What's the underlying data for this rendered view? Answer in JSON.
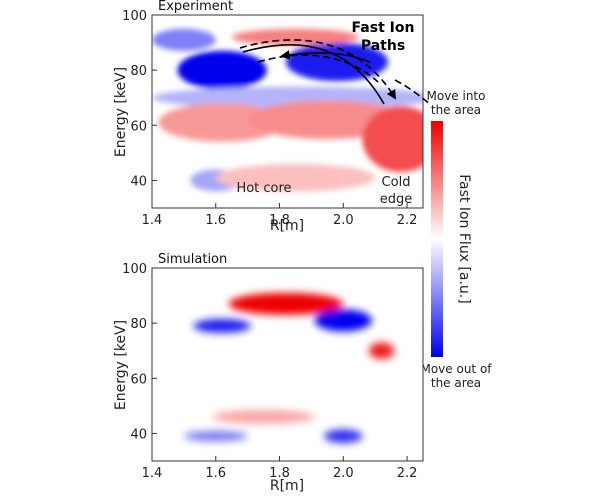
{
  "chart_data": [
    {
      "type": "heatmap",
      "title": "Experiment",
      "xlabel": "R[m]",
      "ylabel": "Energy [keV]",
      "xlim": [
        1.4,
        2.25
      ],
      "ylim": [
        30,
        100
      ],
      "xticks": [
        "1.4",
        "1.6",
        "1.8",
        "2.0",
        "2.2"
      ],
      "yticks": [
        "40",
        "60",
        "80",
        "100"
      ],
      "annotations": {
        "paths_line1": "Fast Ion",
        "paths_line2": "Paths",
        "hot_core": "Hot core",
        "cold_edge_line1": "Cold",
        "cold_edge_line2": "edge"
      },
      "colorbar": {
        "label": "Fast Ion Flux [a.u.]",
        "top_label_line1": "Move into",
        "top_label_line2": "the area",
        "bottom_label_line1": "Move out of",
        "bottom_label_line2": "the area",
        "colors": [
          "#0000ee",
          "#ffffff",
          "#ee0000"
        ]
      },
      "blobs": [
        {
          "x": 1.62,
          "y": 80,
          "rx": 0.14,
          "ry": 7,
          "value": -1.0
        },
        {
          "x": 1.5,
          "y": 91,
          "rx": 0.1,
          "ry": 4,
          "value": -0.5
        },
        {
          "x": 1.98,
          "y": 83,
          "rx": 0.16,
          "ry": 7,
          "value": -0.9
        },
        {
          "x": 1.85,
          "y": 92,
          "rx": 0.2,
          "ry": 3,
          "value": 0.5
        },
        {
          "x": 1.85,
          "y": 70,
          "rx": 0.45,
          "ry": 4,
          "value": -0.3
        },
        {
          "x": 1.62,
          "y": 61,
          "rx": 0.2,
          "ry": 7,
          "value": 0.4
        },
        {
          "x": 1.95,
          "y": 62,
          "rx": 0.25,
          "ry": 7,
          "value": 0.45
        },
        {
          "x": 2.18,
          "y": 55,
          "rx": 0.12,
          "ry": 12,
          "value": 0.7
        },
        {
          "x": 1.6,
          "y": 40,
          "rx": 0.08,
          "ry": 4,
          "value": -0.35
        },
        {
          "x": 1.85,
          "y": 41,
          "rx": 0.25,
          "ry": 5,
          "value": 0.25
        }
      ]
    },
    {
      "type": "heatmap",
      "title": "Simulation",
      "xlabel": "R[m]",
      "ylabel": "Energy [keV]",
      "xlim": [
        1.4,
        2.25
      ],
      "ylim": [
        30,
        100
      ],
      "xticks": [
        "1.4",
        "1.6",
        "1.8",
        "2.0",
        "2.2"
      ],
      "yticks": [
        "40",
        "60",
        "80",
        "100"
      ],
      "blobs": [
        {
          "x": 1.82,
          "y": 87,
          "rx": 0.18,
          "ry": 4,
          "value": 1.0
        },
        {
          "x": 1.62,
          "y": 79,
          "rx": 0.09,
          "ry": 2.5,
          "value": -0.9
        },
        {
          "x": 2.0,
          "y": 81,
          "rx": 0.09,
          "ry": 4,
          "value": -1.0
        },
        {
          "x": 2.12,
          "y": 70,
          "rx": 0.04,
          "ry": 3,
          "value": 0.9
        },
        {
          "x": 1.75,
          "y": 46,
          "rx": 0.16,
          "ry": 2.5,
          "value": 0.35
        },
        {
          "x": 1.6,
          "y": 39,
          "rx": 0.1,
          "ry": 2,
          "value": -0.5
        },
        {
          "x": 2.0,
          "y": 39,
          "rx": 0.06,
          "ry": 2.5,
          "value": -0.8
        }
      ]
    }
  ]
}
